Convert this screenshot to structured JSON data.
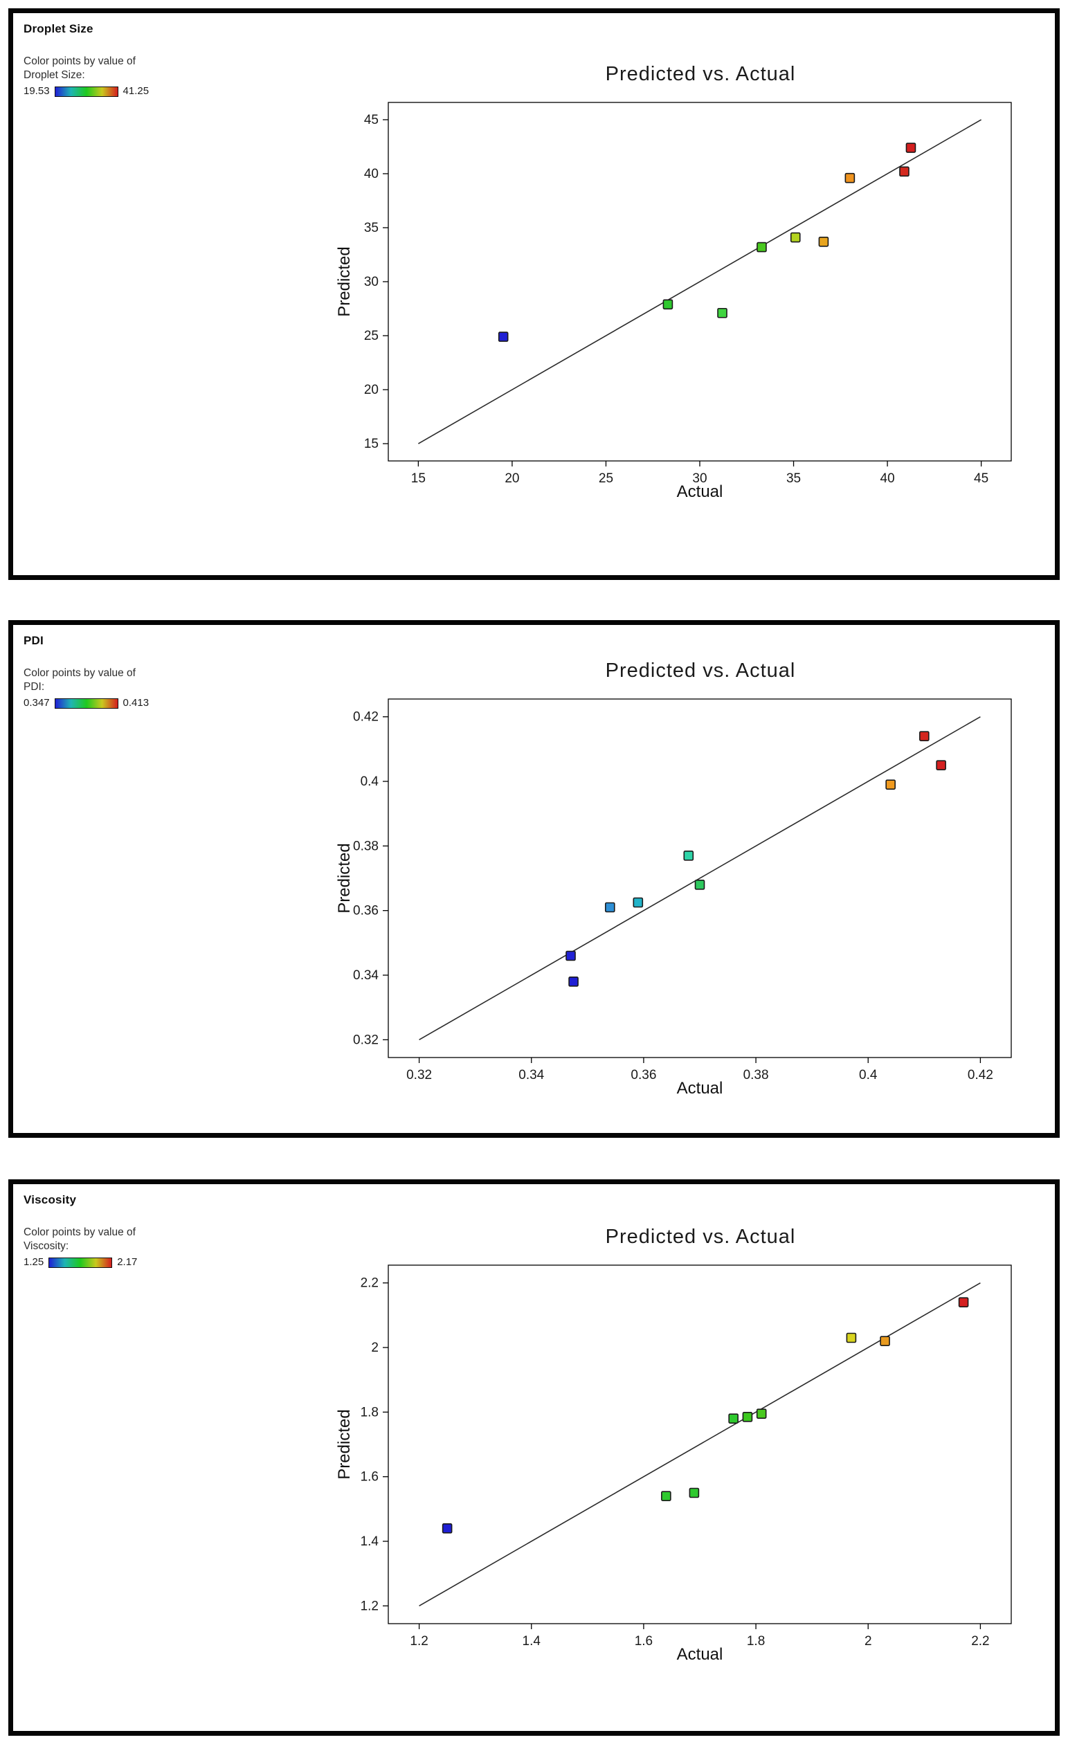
{
  "page": {
    "background": "#ffffff",
    "panel_border_color": "#050505"
  },
  "chart_data": [
    {
      "type": "scatter",
      "panel_title": "Droplet Size",
      "legend": {
        "line1": "Color points by value of",
        "line2": "Droplet Size:",
        "min": "19.53",
        "max": "41.25",
        "gradient": [
          "#1f1fd4",
          "#1fb4b4",
          "#1fc91f",
          "#c9c91f",
          "#d41f1f"
        ]
      },
      "title": "Predicted vs. Actual",
      "xlabel": "Actual",
      "ylabel": "Predicted",
      "axis_range": [
        13.4,
        46.6
      ],
      "tick_values": [
        15,
        20,
        25,
        30,
        35,
        40,
        45
      ],
      "tick_labels": [
        "15",
        "20",
        "25",
        "30",
        "35",
        "40",
        "45"
      ],
      "line": [
        15,
        45
      ],
      "line_color": "#2b2b2b",
      "points": [
        {
          "actual": 19.53,
          "predicted": 24.9,
          "color": "#1f1fd4"
        },
        {
          "actual": 28.3,
          "predicted": 27.9,
          "color": "#2ec92e"
        },
        {
          "actual": 31.2,
          "predicted": 27.1,
          "color": "#3fd43f"
        },
        {
          "actual": 33.3,
          "predicted": 33.2,
          "color": "#49c91f"
        },
        {
          "actual": 35.1,
          "predicted": 34.1,
          "color": "#b4d41f"
        },
        {
          "actual": 36.6,
          "predicted": 33.7,
          "color": "#e8a51f"
        },
        {
          "actual": 38.0,
          "predicted": 39.6,
          "color": "#f0941f"
        },
        {
          "actual": 40.9,
          "predicted": 40.2,
          "color": "#d42a1f"
        },
        {
          "actual": 41.25,
          "predicted": 42.4,
          "color": "#d41f1f"
        }
      ]
    },
    {
      "type": "scatter",
      "panel_title": "PDI",
      "legend": {
        "line1": "Color points by value of",
        "line2": "PDI:",
        "min": "0.347",
        "max": "0.413",
        "gradient": [
          "#1f1fd4",
          "#1fb4b4",
          "#1fc91f",
          "#c9c91f",
          "#d41f1f"
        ]
      },
      "title": "Predicted vs. Actual",
      "xlabel": "Actual",
      "ylabel": "Predicted",
      "axis_range": [
        0.3145,
        0.4255
      ],
      "tick_values": [
        0.32,
        0.34,
        0.36,
        0.38,
        0.4,
        0.42
      ],
      "tick_labels": [
        "0.32",
        "0.34",
        "0.36",
        "0.38",
        "0.4",
        "0.42"
      ],
      "line": [
        0.32,
        0.42
      ],
      "line_color": "#2b2b2b",
      "points": [
        {
          "actual": 0.347,
          "predicted": 0.346,
          "color": "#2222d4"
        },
        {
          "actual": 0.3475,
          "predicted": 0.338,
          "color": "#1f1fd4"
        },
        {
          "actual": 0.354,
          "predicted": 0.361,
          "color": "#2e8fd6"
        },
        {
          "actual": 0.359,
          "predicted": 0.3625,
          "color": "#22b4c9"
        },
        {
          "actual": 0.368,
          "predicted": 0.377,
          "color": "#2ed4a8"
        },
        {
          "actual": 0.37,
          "predicted": 0.368,
          "color": "#2ec95e"
        },
        {
          "actual": 0.404,
          "predicted": 0.399,
          "color": "#f09a1f"
        },
        {
          "actual": 0.41,
          "predicted": 0.414,
          "color": "#d4261f"
        },
        {
          "actual": 0.413,
          "predicted": 0.405,
          "color": "#d41f1f"
        }
      ]
    },
    {
      "type": "scatter",
      "panel_title": "Viscosity",
      "legend": {
        "line1": "Color points by value of",
        "line2": "Viscosity:",
        "min": "1.25",
        "max": "2.17",
        "gradient": [
          "#1f1fd4",
          "#1fb4b4",
          "#1fc91f",
          "#c9c91f",
          "#d41f1f"
        ]
      },
      "title": "Predicted vs. Actual",
      "xlabel": "Actual",
      "ylabel": "Predicted",
      "axis_range": [
        1.145,
        2.255
      ],
      "tick_values": [
        1.2,
        1.4,
        1.6,
        1.8,
        2,
        2.2
      ],
      "tick_labels": [
        "1.2",
        "1.4",
        "1.6",
        "1.8",
        "2",
        "2.2"
      ],
      "line": [
        1.2,
        2.2
      ],
      "line_color": "#2b2b2b",
      "points": [
        {
          "actual": 1.25,
          "predicted": 1.44,
          "color": "#1f1fd4"
        },
        {
          "actual": 1.64,
          "predicted": 1.54,
          "color": "#2ec92e"
        },
        {
          "actual": 1.69,
          "predicted": 1.55,
          "color": "#2ec92e"
        },
        {
          "actual": 1.76,
          "predicted": 1.78,
          "color": "#2ec92e"
        },
        {
          "actual": 1.785,
          "predicted": 1.785,
          "color": "#3cc91f"
        },
        {
          "actual": 1.81,
          "predicted": 1.795,
          "color": "#49c91f"
        },
        {
          "actual": 1.97,
          "predicted": 2.03,
          "color": "#d9d41f"
        },
        {
          "actual": 2.03,
          "predicted": 2.02,
          "color": "#e89a1f"
        },
        {
          "actual": 2.17,
          "predicted": 2.14,
          "color": "#d41f1f"
        }
      ]
    }
  ]
}
